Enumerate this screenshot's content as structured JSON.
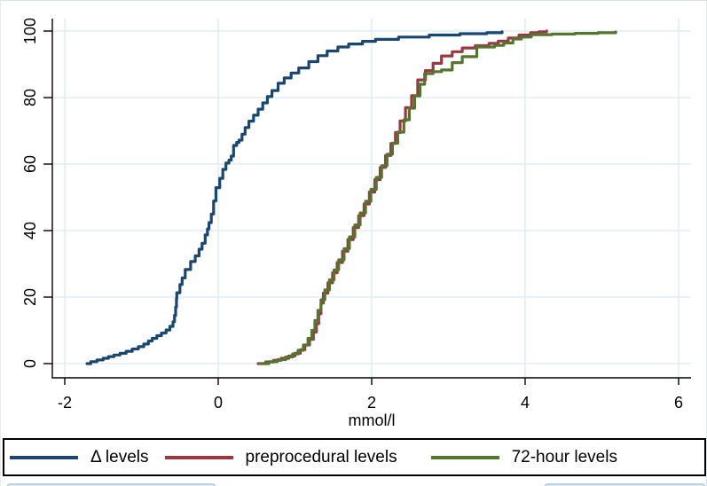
{
  "figure": {
    "kind": "statistical-graph",
    "background": "#ffffff"
  },
  "chart_data": {
    "type": "line",
    "subtype": "empirical-cdf-step",
    "title": "",
    "xlabel": "mmol/l",
    "ylabel": "",
    "grid": true,
    "grid_color": "#dceaf0",
    "axis_color": "#000000",
    "legend_position": "bottom",
    "xlim": [
      -2.16,
      6.16
    ],
    "ylim": [
      -4.3,
      103.7
    ],
    "x_ticks": [
      -2,
      0,
      2,
      4,
      6
    ],
    "x_tick_labels": [
      "-2",
      "0",
      "2",
      "4",
      "6"
    ],
    "y_ticks": [
      0,
      20,
      40,
      60,
      80,
      100
    ],
    "y_tick_labels": [
      "0",
      "20",
      "40",
      "60",
      "80",
      "100"
    ],
    "series": [
      {
        "id": "delta-levels",
        "name": "Δ levels",
        "color": "#1a476f",
        "points": [
          [
            -1.71,
            0
          ],
          [
            -1.66,
            0.6
          ],
          [
            -1.58,
            1.1
          ],
          [
            -1.5,
            1.6
          ],
          [
            -1.43,
            2.1
          ],
          [
            -1.36,
            2.6
          ],
          [
            -1.28,
            3.1
          ],
          [
            -1.2,
            3.7
          ],
          [
            -1.12,
            4.4
          ],
          [
            -1.04,
            5.1
          ],
          [
            -0.97,
            5.9
          ],
          [
            -0.91,
            6.8
          ],
          [
            -0.86,
            7.6
          ],
          [
            -0.8,
            8.4
          ],
          [
            -0.74,
            9.2
          ],
          [
            -0.68,
            10.1
          ],
          [
            -0.63,
            11.2
          ],
          [
            -0.59,
            12.6
          ],
          [
            -0.57,
            14.5
          ],
          [
            -0.555,
            17
          ],
          [
            -0.545,
            19.5
          ],
          [
            -0.54,
            21.3
          ],
          [
            -0.5,
            23.8
          ],
          [
            -0.47,
            25.8
          ],
          [
            -0.43,
            28.3
          ],
          [
            -0.36,
            30.7
          ],
          [
            -0.3,
            32.4
          ],
          [
            -0.25,
            34.4
          ],
          [
            -0.21,
            36.2
          ],
          [
            -0.17,
            38.7
          ],
          [
            -0.14,
            40.5
          ],
          [
            -0.12,
            42.4
          ],
          [
            -0.09,
            45
          ],
          [
            -0.06,
            48.9
          ],
          [
            -0.03,
            52.9
          ],
          [
            0.02,
            55.7
          ],
          [
            0.06,
            58.4
          ],
          [
            0.1,
            60.3
          ],
          [
            0.14,
            61.2
          ],
          [
            0.17,
            62.4
          ],
          [
            0.2,
            65.6
          ],
          [
            0.24,
            66.5
          ],
          [
            0.27,
            67.2
          ],
          [
            0.31,
            69
          ],
          [
            0.35,
            71
          ],
          [
            0.4,
            72.9
          ],
          [
            0.46,
            74.7
          ],
          [
            0.52,
            76.5
          ],
          [
            0.58,
            78.4
          ],
          [
            0.64,
            80.3
          ],
          [
            0.7,
            82.1
          ],
          [
            0.78,
            84.3
          ],
          [
            0.86,
            85.9
          ],
          [
            0.95,
            87.4
          ],
          [
            1.05,
            88.9
          ],
          [
            1.18,
            90.8
          ],
          [
            1.3,
            92.6
          ],
          [
            1.42,
            94
          ],
          [
            1.56,
            95.2
          ],
          [
            1.7,
            96.1
          ],
          [
            1.88,
            96.9
          ],
          [
            2.05,
            97.5
          ],
          [
            2.35,
            98.2
          ],
          [
            2.75,
            98.8
          ],
          [
            3.15,
            99.2
          ],
          [
            3.5,
            99.5
          ],
          [
            3.7,
            99.8
          ]
        ]
      },
      {
        "id": "preprocedural-levels",
        "name": "preprocedural levels",
        "color": "#983a42",
        "points": [
          [
            0.52,
            0
          ],
          [
            0.62,
            0.5
          ],
          [
            0.72,
            1
          ],
          [
            0.82,
            1.6
          ],
          [
            0.92,
            2.3
          ],
          [
            1,
            3.1
          ],
          [
            1.07,
            4.2
          ],
          [
            1.13,
            5.6
          ],
          [
            1.19,
            7.3
          ],
          [
            1.24,
            9.5
          ],
          [
            1.28,
            12
          ],
          [
            1.31,
            15
          ],
          [
            1.34,
            18.2
          ],
          [
            1.37,
            21.2
          ],
          [
            1.43,
            24.3
          ],
          [
            1.49,
            27.3
          ],
          [
            1.55,
            30.4
          ],
          [
            1.62,
            33.8
          ],
          [
            1.69,
            37.3
          ],
          [
            1.76,
            40.9
          ],
          [
            1.83,
            44.5
          ],
          [
            1.9,
            48
          ],
          [
            1.97,
            51.6
          ],
          [
            2.04,
            55.3
          ],
          [
            2.11,
            59
          ],
          [
            2.18,
            62.6
          ],
          [
            2.25,
            66.2
          ],
          [
            2.31,
            69.5
          ],
          [
            2.37,
            73
          ],
          [
            2.44,
            77
          ],
          [
            2.52,
            80.6
          ],
          [
            2.6,
            85.3
          ],
          [
            2.7,
            88.1
          ],
          [
            2.8,
            90.3
          ],
          [
            2.91,
            92.5
          ],
          [
            3.05,
            93.8
          ],
          [
            3.18,
            94.9
          ],
          [
            3.35,
            95.6
          ],
          [
            3.53,
            96.3
          ],
          [
            3.65,
            97
          ],
          [
            3.78,
            97.9
          ],
          [
            3.92,
            98.8
          ],
          [
            4.07,
            99.5
          ],
          [
            4.18,
            99.8
          ],
          [
            4.28,
            100
          ]
        ]
      },
      {
        "id": "72-hour-levels",
        "name": "72-hour levels",
        "color": "#55752f",
        "points": [
          [
            0.55,
            0
          ],
          [
            0.66,
            0.6
          ],
          [
            0.77,
            1.2
          ],
          [
            0.88,
            2
          ],
          [
            0.97,
            2.9
          ],
          [
            1.04,
            4
          ],
          [
            1.11,
            5.6
          ],
          [
            1.17,
            7.6
          ],
          [
            1.22,
            10
          ],
          [
            1.26,
            13
          ],
          [
            1.3,
            16
          ],
          [
            1.34,
            19.2
          ],
          [
            1.39,
            22.2
          ],
          [
            1.45,
            25.2
          ],
          [
            1.51,
            28.2
          ],
          [
            1.57,
            31.2
          ],
          [
            1.64,
            34.6
          ],
          [
            1.71,
            38.1
          ],
          [
            1.78,
            41.7
          ],
          [
            1.85,
            45.3
          ],
          [
            1.92,
            48.8
          ],
          [
            1.99,
            52.4
          ],
          [
            2.06,
            56
          ],
          [
            2.13,
            59.5
          ],
          [
            2.2,
            63
          ],
          [
            2.27,
            66.3
          ],
          [
            2.34,
            69.6
          ],
          [
            2.42,
            73.3
          ],
          [
            2.49,
            76.8
          ],
          [
            2.56,
            80.5
          ],
          [
            2.63,
            84
          ],
          [
            2.69,
            87.2
          ],
          [
            2.8,
            87.8
          ],
          [
            2.91,
            88.3
          ],
          [
            3.05,
            90.5
          ],
          [
            3.18,
            92.3
          ],
          [
            3.37,
            95.2
          ],
          [
            3.6,
            95.7
          ],
          [
            3.72,
            96.4
          ],
          [
            3.84,
            97.6
          ],
          [
            3.95,
            98.2
          ],
          [
            4.08,
            98.9
          ],
          [
            4.35,
            99.1
          ],
          [
            4.65,
            99.3
          ],
          [
            4.95,
            99.5
          ],
          [
            5.18,
            99.7
          ]
        ]
      }
    ]
  },
  "legend": {
    "items": [
      {
        "label": "Δ levels",
        "color": "#1a476f"
      },
      {
        "label": "preprocedural levels",
        "color": "#983a42"
      },
      {
        "label": "72-hour levels",
        "color": "#55752f"
      }
    ]
  }
}
